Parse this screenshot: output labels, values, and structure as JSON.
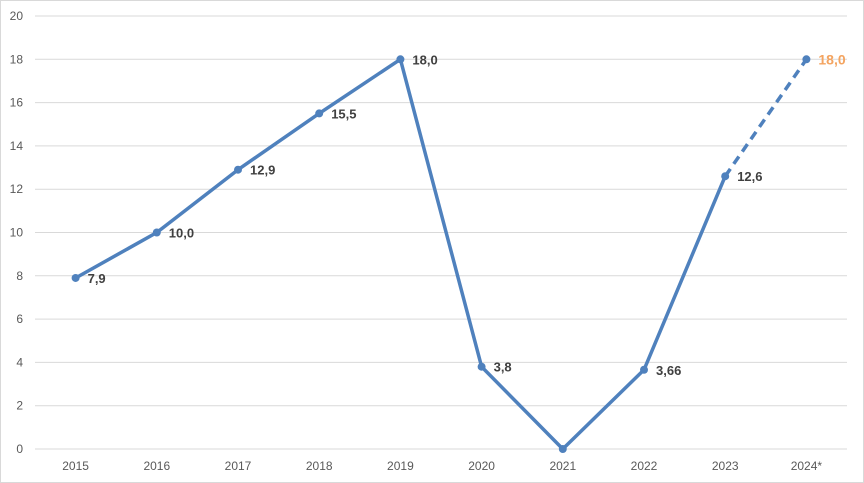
{
  "chart_data": {
    "type": "line",
    "title": "",
    "xlabel": "",
    "ylabel": "",
    "categories": [
      "2015",
      "2016",
      "2017",
      "2018",
      "2019",
      "2020",
      "2021",
      "2022",
      "2023",
      "2024*"
    ],
    "series": [
      {
        "values": [
          7.9,
          10.0,
          12.9,
          15.5,
          18.0,
          3.8,
          0,
          3.66,
          12.6,
          18.0
        ],
        "labels": [
          "7,9",
          "10,0",
          "12,9",
          "15,5",
          "18,0",
          "3,8",
          "",
          "3,66",
          "12,6",
          "18,0"
        ],
        "color": "#4f81bd",
        "forecast_from_index": 8
      }
    ],
    "ylim": [
      0,
      20
    ],
    "yticks": [
      "0",
      "2",
      "4",
      "6",
      "8",
      "10",
      "12",
      "14",
      "16",
      "18",
      "20"
    ],
    "grid": "horizontal",
    "legend": "none",
    "highlight_label_color": "#f4a460"
  }
}
